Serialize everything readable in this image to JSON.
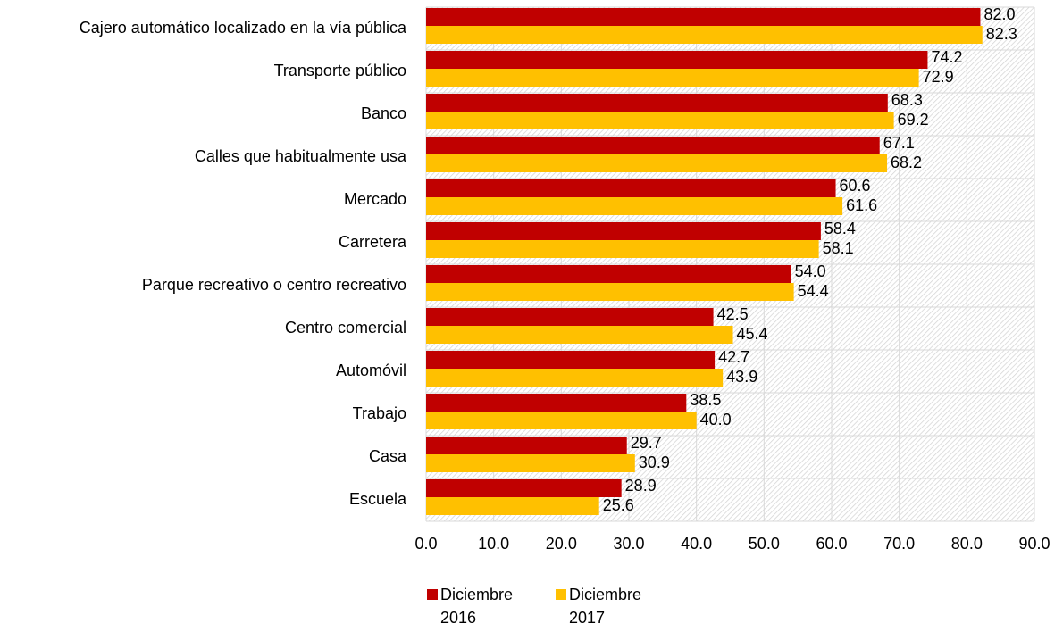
{
  "chart_data": {
    "type": "bar",
    "orientation": "horizontal",
    "categories": [
      "Cajero automático localizado en la vía pública",
      "Transporte público",
      "Banco",
      "Calles que habitualmente usa",
      "Mercado",
      "Carretera",
      "Parque recreativo o centro recreativo",
      "Centro comercial",
      "Automóvil",
      "Trabajo",
      "Casa",
      "Escuela"
    ],
    "series": [
      {
        "name": "Diciembre 2016",
        "color": "#c00000",
        "values": [
          82.0,
          74.2,
          68.3,
          67.1,
          60.6,
          58.4,
          54.0,
          42.5,
          42.7,
          38.5,
          29.7,
          28.9
        ],
        "value_labels": [
          "82.0",
          "74.2",
          "68.3",
          "67.1",
          "60.6",
          "58.4",
          "54.0",
          "42.5",
          "42.7",
          "38.5",
          "29.7",
          "28.9"
        ]
      },
      {
        "name": "Diciembre 2017",
        "color": "#ffc000",
        "values": [
          82.3,
          72.9,
          69.2,
          68.2,
          61.6,
          58.1,
          54.4,
          45.4,
          43.9,
          40.0,
          30.9,
          25.6
        ],
        "value_labels": [
          "82.3",
          "72.9",
          "69.2",
          "68.2",
          "61.6",
          "58.1",
          "54.4",
          "45.4",
          "43.9",
          "40.0",
          "30.9",
          "25.6"
        ]
      }
    ],
    "xlim": [
      0,
      90
    ],
    "xticks": [
      {
        "value": 0,
        "label": "0.0"
      },
      {
        "value": 10,
        "label": "10.0"
      },
      {
        "value": 20,
        "label": "20.0"
      },
      {
        "value": 30,
        "label": "30.0"
      },
      {
        "value": 40,
        "label": "40.0"
      },
      {
        "value": 50,
        "label": "50.0"
      },
      {
        "value": 60,
        "label": "60.0"
      },
      {
        "value": 70,
        "label": "70.0"
      },
      {
        "value": 80,
        "label": "80.0"
      },
      {
        "value": 90,
        "label": "90.0"
      }
    ],
    "grid": true,
    "legend": "bottom"
  }
}
